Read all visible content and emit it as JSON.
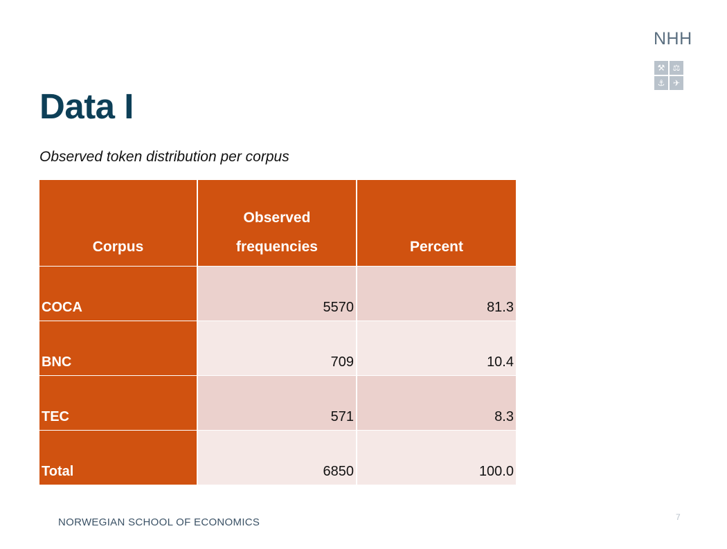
{
  "slide": {
    "title": "Data I",
    "subtitle": "Observed token distribution per corpus",
    "page_number": "7"
  },
  "logo": {
    "text": "NHH",
    "symbols": [
      "⚒",
      "⚖",
      "⚓",
      "✈"
    ]
  },
  "table": {
    "headers": [
      "Corpus",
      "Observed frequencies",
      "Percent"
    ],
    "header_lines": {
      "col2_line1": "Observed",
      "col2_line2": "frequencies"
    },
    "rows": [
      {
        "corpus": "COCA",
        "frequency": "5570",
        "percent": "81.3"
      },
      {
        "corpus": "BNC",
        "frequency": "709",
        "percent": "10.4"
      },
      {
        "corpus": "TEC",
        "frequency": "571",
        "percent": "8.3"
      },
      {
        "corpus": "Total",
        "frequency": "6850",
        "percent": "100.0"
      }
    ]
  },
  "footer": {
    "institution": "NORWEGIAN SCHOOL OF ECONOMICS"
  },
  "colors": {
    "title": "#0d3f57",
    "accent_orange": "#d05210",
    "row_odd": "#ebd1cd",
    "row_even": "#f5e8e6"
  }
}
